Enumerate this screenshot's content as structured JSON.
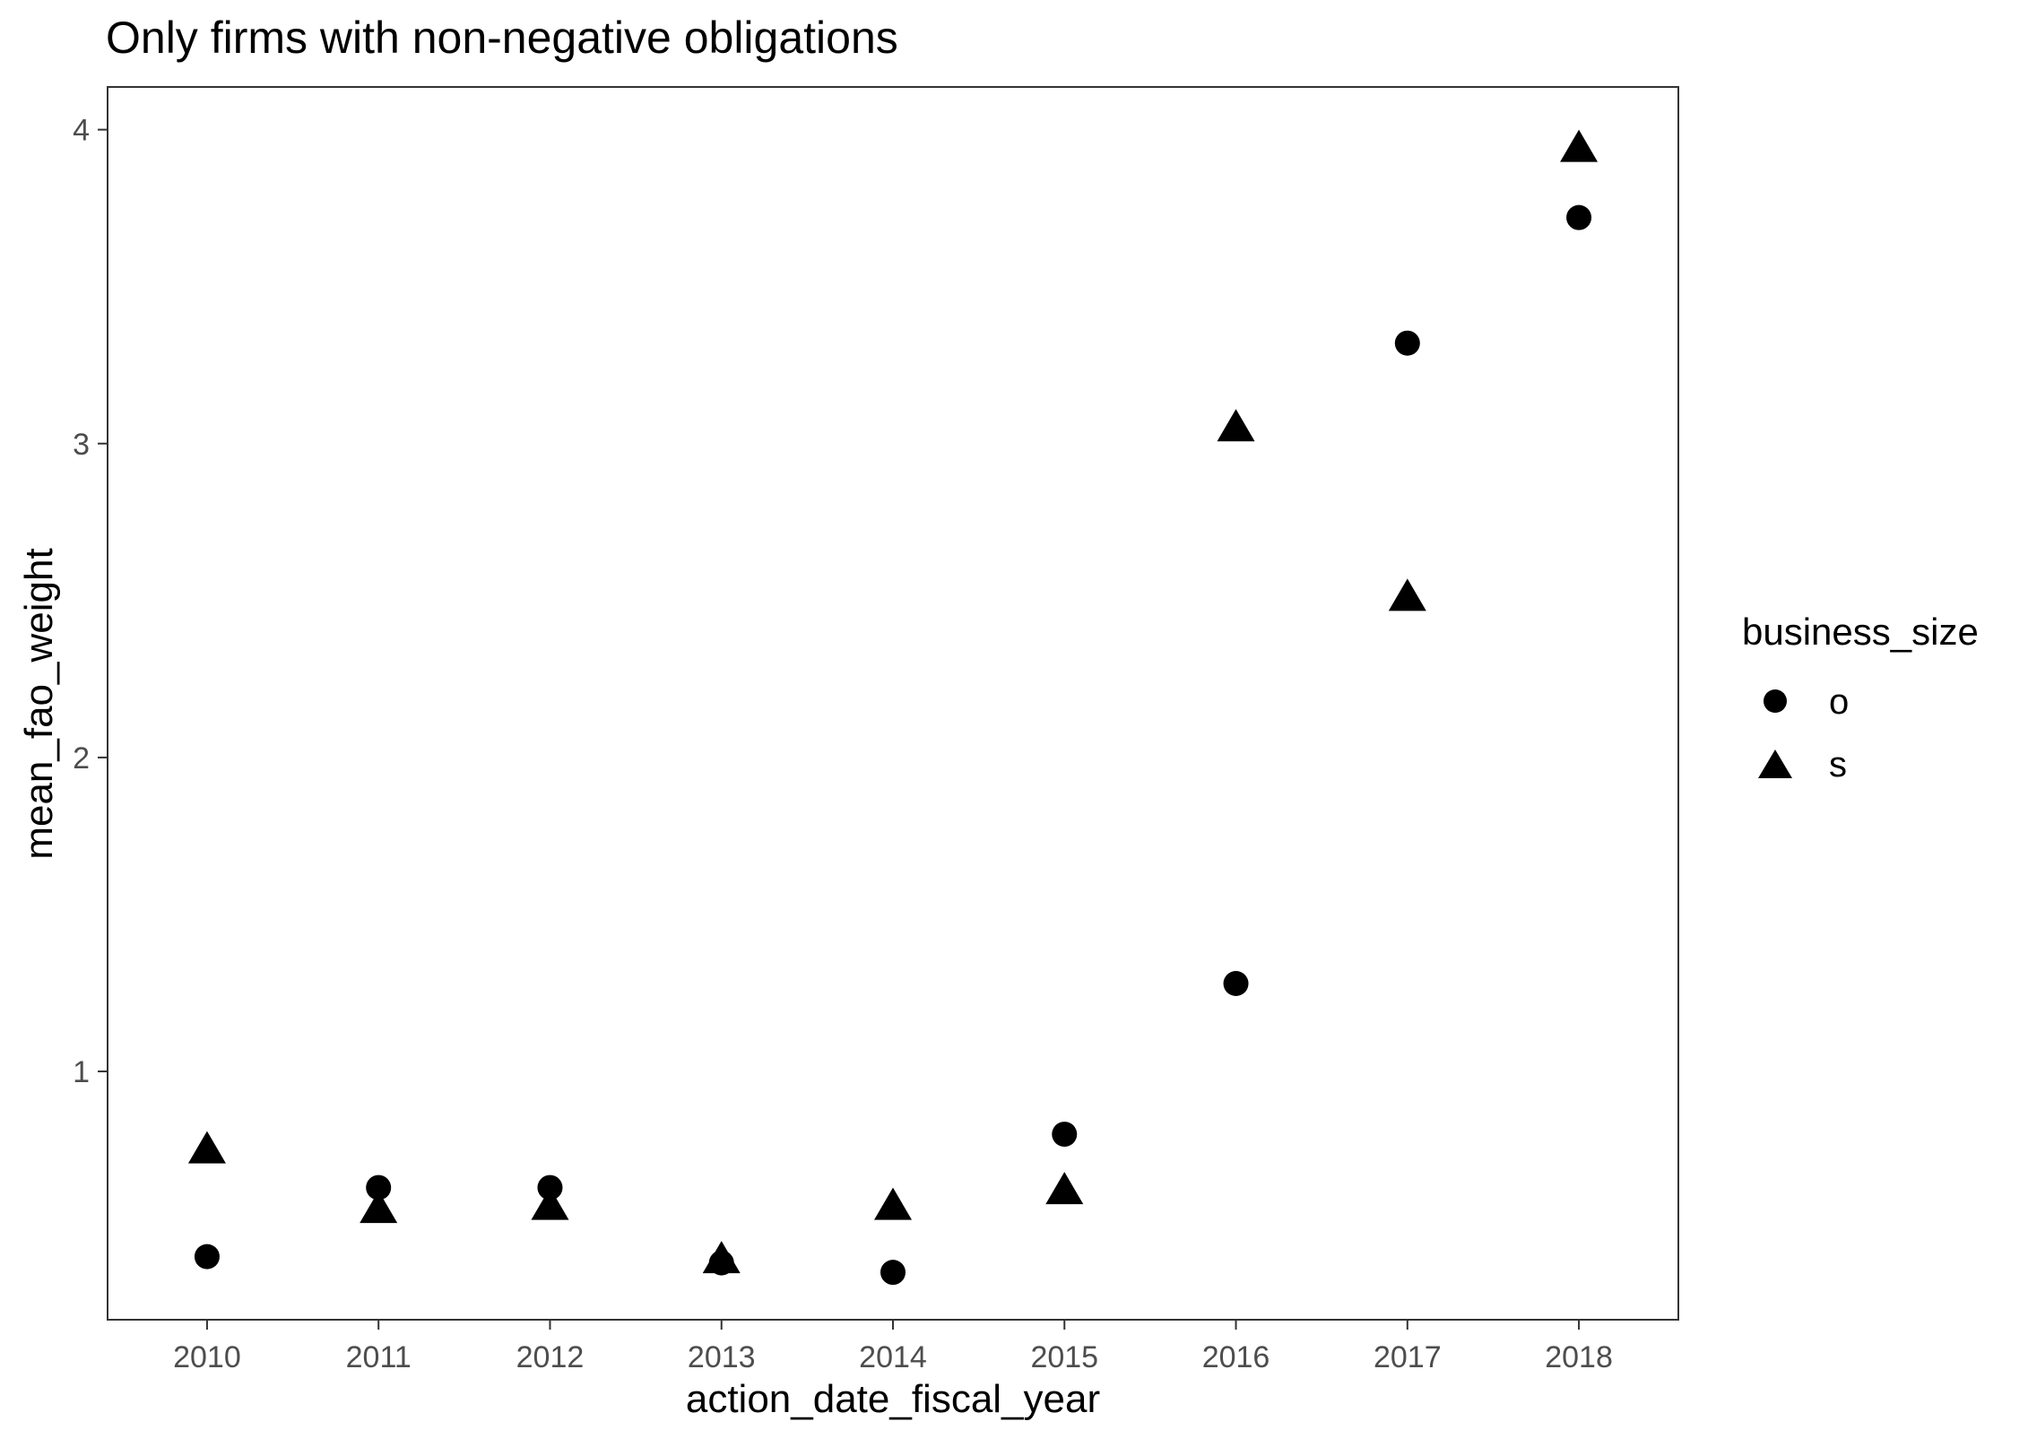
{
  "chart_data": {
    "type": "scatter",
    "title": "Only firms with non-negative obligations",
    "xlabel": "action_date_fiscal_year",
    "ylabel": "mean_fao_weight",
    "x": [
      2010,
      2011,
      2012,
      2013,
      2014,
      2015,
      2016,
      2017,
      2018
    ],
    "x_ticks": [
      "2010",
      "2011",
      "2012",
      "2013",
      "2014",
      "2015",
      "2016",
      "2017",
      "2018"
    ],
    "xlim": [
      2009.42,
      2018.58
    ],
    "y_ticks": [
      "1",
      "2",
      "3",
      "4"
    ],
    "ylim": [
      0.209,
      4.136
    ],
    "grid": false,
    "legend": {
      "title": "business_size",
      "position": "right"
    },
    "series": [
      {
        "name": "o",
        "shape": "circle",
        "values": [
          0.41,
          0.63,
          0.63,
          0.39,
          0.36,
          0.8,
          1.28,
          3.32,
          3.72
        ]
      },
      {
        "name": "s",
        "shape": "triangle",
        "values": [
          0.75,
          0.56,
          0.57,
          0.4,
          0.57,
          0.62,
          3.05,
          2.51,
          3.94
        ]
      }
    ],
    "colors": {
      "points": "#000000",
      "ticks": "#4d4d4d",
      "panel_border": "#333333"
    }
  }
}
